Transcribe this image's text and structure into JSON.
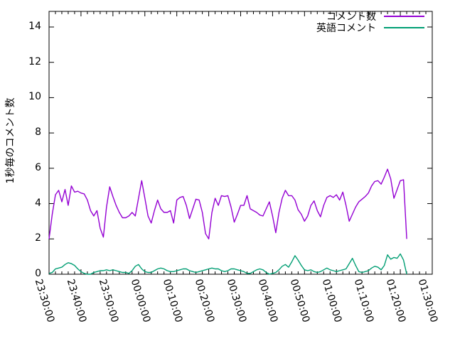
{
  "chart_data": {
    "type": "line",
    "title": "",
    "xlabel": "",
    "ylabel": "1秒毎のコメント数",
    "x_tick_labels": [
      "23:30:00",
      "23:40:00",
      "23:50:00",
      "00:00:00",
      "00:10:00",
      "00:20:00",
      "00:30:00",
      "00:40:00",
      "00:50:00",
      "01:00:00",
      "01:10:00",
      "01:20:00",
      "01:30:00"
    ],
    "x_major_tick_minutes": 10,
    "x_minor_tick_minutes": 2,
    "x_total_minutes": 120,
    "sample_interval_minutes": 1,
    "y_ticks": [
      0,
      2,
      4,
      6,
      8,
      10,
      12,
      14
    ],
    "ylim": [
      0,
      14.9
    ],
    "grid": false,
    "legend_position": "top-right-inside",
    "series": [
      {
        "name": "コメント数",
        "color": "#9400d3",
        "values": [
          2.0,
          3.4,
          4.5,
          4.75,
          4.1,
          4.8,
          3.9,
          5.0,
          4.65,
          4.7,
          4.6,
          4.55,
          4.2,
          3.6,
          3.3,
          3.6,
          2.6,
          2.1,
          3.8,
          4.95,
          4.4,
          3.9,
          3.5,
          3.2,
          3.2,
          3.3,
          3.5,
          3.3,
          4.3,
          5.3,
          4.3,
          3.3,
          2.9,
          3.6,
          4.2,
          3.7,
          3.5,
          3.5,
          3.6,
          2.9,
          4.2,
          4.35,
          4.4,
          3.9,
          3.15,
          3.7,
          4.25,
          4.2,
          3.5,
          2.3,
          2.0,
          3.5,
          4.3,
          3.9,
          4.45,
          4.4,
          4.45,
          3.8,
          2.95,
          3.4,
          3.9,
          3.9,
          4.45,
          3.7,
          3.6,
          3.5,
          3.35,
          3.3,
          3.7,
          4.1,
          3.3,
          2.35,
          3.5,
          4.3,
          4.75,
          4.45,
          4.45,
          4.2,
          3.65,
          3.4,
          3.0,
          3.3,
          3.9,
          4.15,
          3.6,
          3.25,
          3.9,
          4.35,
          4.45,
          4.35,
          4.5,
          4.2,
          4.65,
          3.9,
          3.0,
          3.4,
          3.8,
          4.1,
          4.25,
          4.4,
          4.6,
          5.0,
          5.25,
          5.3,
          5.1,
          5.5,
          5.95,
          5.4,
          4.3,
          4.8,
          5.3,
          5.35,
          2.0
        ]
      },
      {
        "name": "英語コメント",
        "color": "#009e73",
        "values": [
          0.05,
          0.1,
          0.3,
          0.35,
          0.4,
          0.55,
          0.65,
          0.6,
          0.5,
          0.3,
          0.15,
          0.05,
          0.0,
          0.0,
          0.1,
          0.15,
          0.2,
          0.2,
          0.25,
          0.2,
          0.25,
          0.2,
          0.15,
          0.1,
          0.1,
          0.05,
          0.2,
          0.45,
          0.55,
          0.3,
          0.15,
          0.1,
          0.1,
          0.2,
          0.3,
          0.35,
          0.3,
          0.2,
          0.15,
          0.15,
          0.2,
          0.25,
          0.3,
          0.3,
          0.2,
          0.15,
          0.1,
          0.15,
          0.2,
          0.25,
          0.3,
          0.35,
          0.3,
          0.3,
          0.2,
          0.15,
          0.2,
          0.3,
          0.3,
          0.25,
          0.2,
          0.15,
          0.05,
          0.05,
          0.15,
          0.25,
          0.3,
          0.25,
          0.1,
          0.0,
          0.05,
          0.1,
          0.25,
          0.45,
          0.55,
          0.4,
          0.7,
          1.05,
          0.8,
          0.5,
          0.25,
          0.2,
          0.25,
          0.15,
          0.1,
          0.15,
          0.25,
          0.35,
          0.25,
          0.2,
          0.15,
          0.2,
          0.25,
          0.3,
          0.6,
          0.9,
          0.5,
          0.15,
          0.1,
          0.15,
          0.2,
          0.35,
          0.45,
          0.4,
          0.25,
          0.5,
          1.1,
          0.85,
          0.95,
          0.9,
          1.15,
          0.8,
          0.0
        ]
      }
    ],
    "colors": {
      "axis": "#000000",
      "background": "#ffffff"
    }
  }
}
